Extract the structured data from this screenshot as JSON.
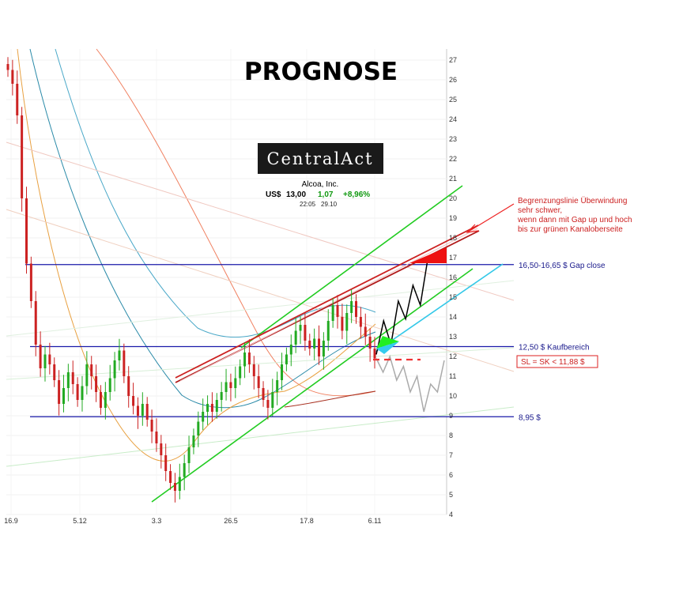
{
  "chart_data": {
    "type": "candlestick",
    "title": "PROGNOSE",
    "instrument": {
      "name": "Alcoa, Inc.",
      "currency_label": "US$",
      "price": "13,00",
      "change": "1,07",
      "change_pct": "+8,96%",
      "time": "22:05",
      "date": "29.10"
    },
    "logo_text": "CentralAct",
    "x_ticks": [
      "16.9",
      "5.12",
      "3.3",
      "26.5",
      "17.8",
      "6.11"
    ],
    "y_ticks": [
      4,
      5,
      6,
      7,
      8,
      9,
      10,
      11,
      12,
      13,
      14,
      15,
      16,
      17,
      18,
      19,
      20,
      21,
      22,
      23,
      24,
      25,
      26,
      27
    ],
    "ylim": [
      4,
      27.5
    ],
    "grid": true,
    "levels": [
      {
        "value": 16.65,
        "label": "16,50-16,65 $ Gap close"
      },
      {
        "value": 12.5,
        "label": "12,50 $ Kaufbereich"
      },
      {
        "value": 8.95,
        "label": "8,95 $"
      }
    ],
    "stop_loss": {
      "value": 11.88,
      "label": "SL = SK < 11,88 $"
    },
    "annotation": {
      "lines": [
        "Begrenzungslinie Überwindung",
        "sehr schwer,",
        "wenn dann mit Gap up und hoch",
        "bis zur grünen Kanaloberseite"
      ]
    },
    "series": [
      {
        "values": [
          26.5,
          25.8,
          24.2,
          20.0,
          16.7,
          14.8,
          12.6,
          11.4,
          12.1,
          11.6,
          10.8,
          9.6,
          10.4,
          11.2,
          10.6,
          9.8,
          10.5,
          11.6,
          11.0,
          10.2,
          9.4,
          10.2,
          10.9,
          11.8,
          12.3,
          11.0,
          10.0,
          9.5,
          9.0,
          9.6,
          8.8,
          8.2,
          7.6,
          7.0,
          6.2,
          5.6,
          5.2,
          5.9,
          6.6,
          7.4,
          8.0,
          8.7,
          9.2,
          9.6,
          9.2,
          9.8,
          10.2,
          10.7,
          10.4,
          10.9,
          11.5,
          12.2,
          11.6,
          11.0,
          10.4,
          9.8,
          9.4,
          10.2,
          10.8,
          11.6,
          12.1,
          12.6,
          13.3,
          13.6,
          12.8,
          12.4,
          12.9,
          12.0,
          12.8,
          13.8,
          14.6,
          14.0,
          13.3,
          14.2,
          14.8,
          14.0,
          13.5,
          13.0,
          12.4,
          11.9
        ]
      }
    ],
    "forecast": [
      {
        "values": [
          12.1,
          13.8,
          12.6,
          14.8,
          13.9,
          15.6,
          14.6,
          16.9
        ]
      },
      {
        "values": [
          11.9,
          11.2,
          12.0,
          10.8,
          11.5,
          10.2,
          11.0,
          9.2,
          10.6,
          10.2,
          11.8
        ]
      }
    ]
  }
}
